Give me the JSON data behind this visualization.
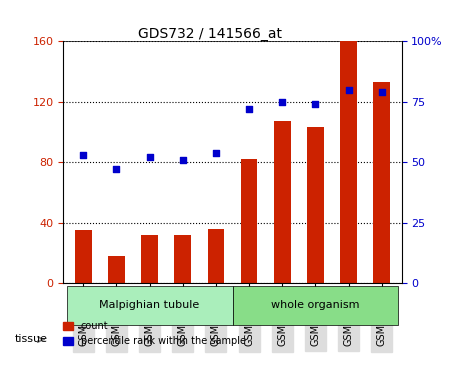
{
  "title": "GDS732 / 141566_at",
  "categories": [
    "GSM29173",
    "GSM29174",
    "GSM29175",
    "GSM29176",
    "GSM29177",
    "GSM29178",
    "GSM29179",
    "GSM29180",
    "GSM29181",
    "GSM29182"
  ],
  "bar_values": [
    35,
    18,
    32,
    32,
    36,
    82,
    107,
    103,
    160,
    133
  ],
  "scatter_values": [
    53,
    47,
    52,
    51,
    54,
    72,
    75,
    74,
    80,
    79
  ],
  "left_ylim": [
    0,
    160
  ],
  "right_ylim": [
    0,
    100
  ],
  "left_yticks": [
    0,
    40,
    80,
    120,
    160
  ],
  "left_yticklabels": [
    "0",
    "40",
    "80",
    "120",
    "160"
  ],
  "right_yticks": [
    0,
    25,
    50,
    75,
    100
  ],
  "right_yticklabels": [
    "0",
    "25",
    "50",
    "75",
    "100%"
  ],
  "bar_color": "#cc2200",
  "scatter_color": "#0000cc",
  "tissue_groups": [
    {
      "label": "Malpighian tubule",
      "start": 0,
      "end": 5,
      "color": "#aaeebb"
    },
    {
      "label": "whole organism",
      "start": 5,
      "end": 10,
      "color": "#88dd88"
    }
  ],
  "tissue_label": "tissue",
  "legend_items": [
    {
      "label": "count",
      "color": "#cc2200"
    },
    {
      "label": "percentile rank within the sample",
      "color": "#0000cc"
    }
  ],
  "grid_color": "black",
  "grid_linestyle": "dotted",
  "bg_color": "white",
  "plot_bg_color": "white",
  "tick_label_bg": "#dddddd",
  "left_tick_color": "#cc2200",
  "right_tick_color": "#0000cc",
  "bar_width": 0.5
}
